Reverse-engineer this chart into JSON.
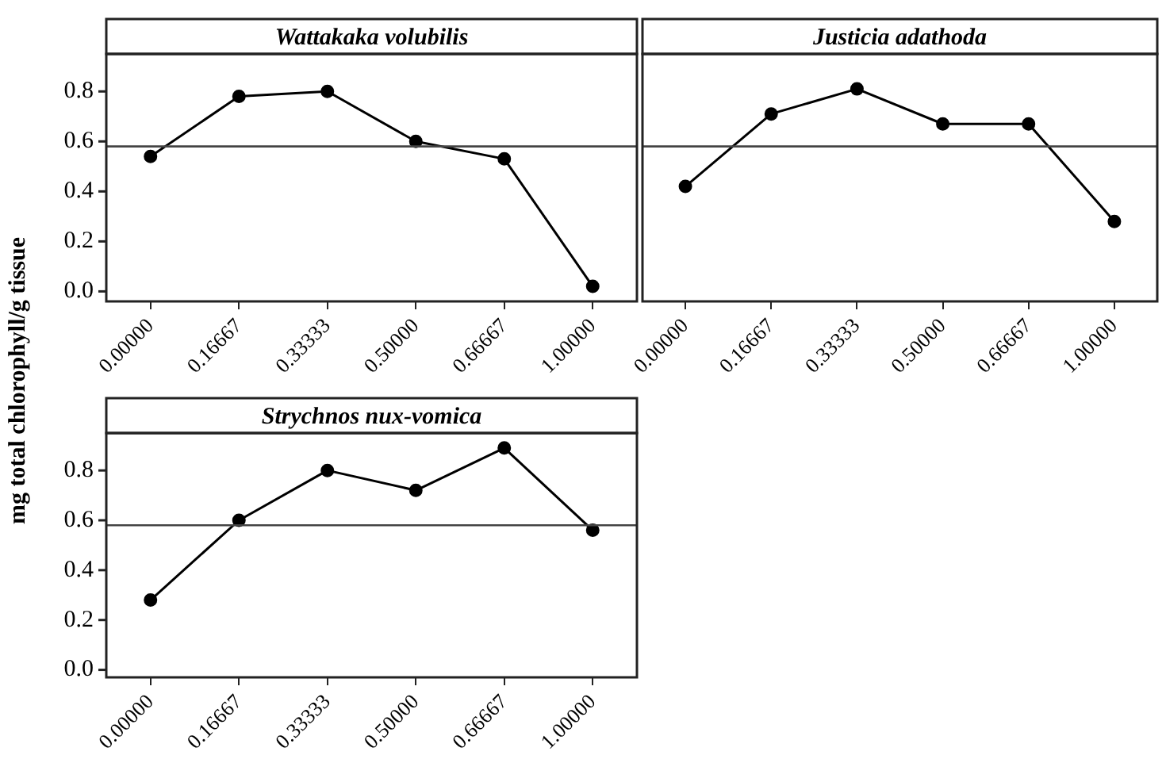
{
  "chart_data": [
    {
      "type": "line",
      "title": "Wattakaka volubilis",
      "ylabel": "mg total chlorophyll/g tissue",
      "categories": [
        "0.00000",
        "0.16667",
        "0.33333",
        "0.50000",
        "0.66667",
        "1.00000"
      ],
      "values": [
        0.54,
        0.78,
        0.8,
        0.6,
        0.53,
        0.02
      ],
      "color": "#000000",
      "marker": "circle",
      "ylim": [
        -0.04,
        0.95
      ],
      "yticks": [
        {
          "value": 0,
          "label": "0.0"
        },
        0.2,
        0.4,
        0.6,
        0.8
      ],
      "ref_lines": [
        {
          "axis": "y",
          "value": 0.58
        }
      ]
    },
    {
      "type": "line",
      "title": "Justicia adathoda",
      "categories": [
        "0.00000",
        "0.16667",
        "0.33333",
        "0.50000",
        "0.66667",
        "1.00000"
      ],
      "values": [
        0.42,
        0.71,
        0.81,
        0.67,
        0.67,
        0.28
      ],
      "color": "#000000",
      "marker": "circle",
      "ylim": [
        -0.04,
        0.95
      ],
      "tick_labels": "x",
      "ref_lines": [
        {
          "axis": "y",
          "value": 0.58
        }
      ]
    },
    {
      "type": "line",
      "title": "Strychnos nux-vomica",
      "categories": [
        "0.00000",
        "0.16667",
        "0.33333",
        "0.50000",
        "0.66667",
        "1.00000"
      ],
      "values": [
        0.28,
        0.6,
        0.8,
        0.72,
        0.89,
        0.56
      ],
      "color": "#000000",
      "marker": "circle",
      "ylim": [
        -0.03,
        0.95
      ],
      "yticks": [
        {
          "value": 0,
          "label": "0.0"
        },
        0.2,
        0.4,
        0.6,
        0.8
      ],
      "ref_lines": [
        {
          "axis": "y",
          "value": 0.58
        }
      ]
    }
  ]
}
